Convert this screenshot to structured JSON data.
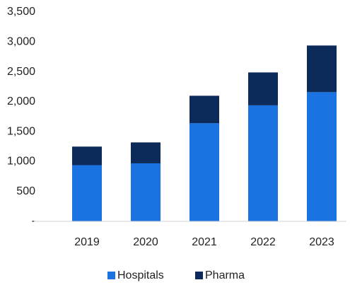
{
  "chart_data": {
    "type": "stacked_bar",
    "categories": [
      "2019",
      "2020",
      "2021",
      "2022",
      "2023"
    ],
    "series": [
      {
        "name": "Hospitals",
        "color": "#1a73e0",
        "values": [
          940,
          970,
          1640,
          1940,
          2160
        ]
      },
      {
        "name": "Pharma",
        "color": "#0c2a5a",
        "values": [
          310,
          350,
          460,
          550,
          780
        ]
      }
    ],
    "ylim": [
      0,
      3500
    ],
    "yticks": [
      {
        "value": 0,
        "label": "-"
      },
      500,
      {
        "value": 1000,
        "label": "1,000"
      },
      {
        "value": 1500,
        "label": "1,500"
      },
      {
        "value": 2000,
        "label": "2,000"
      },
      {
        "value": 2500,
        "label": "2,500"
      },
      {
        "value": 3000,
        "label": "3,000"
      },
      {
        "value": 3500,
        "label": "3,500"
      }
    ],
    "grid": false,
    "legend": "bottom"
  }
}
